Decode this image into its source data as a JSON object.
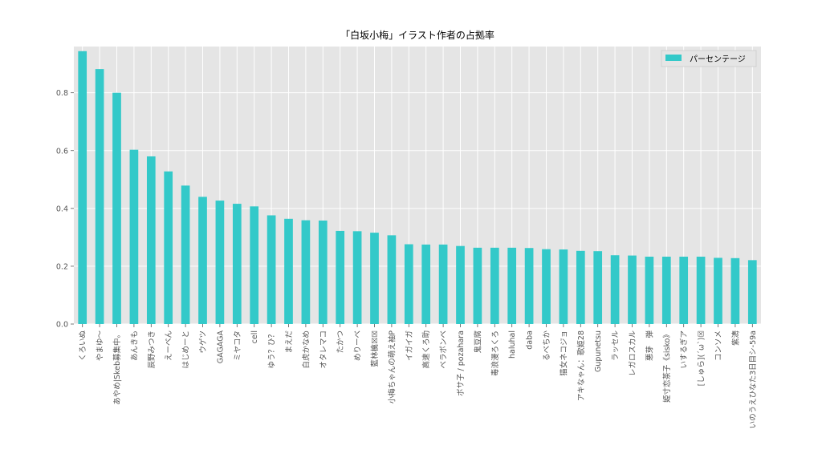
{
  "chart_data": {
    "type": "bar",
    "title": "「白坂小梅」イラスト作者の占拠率",
    "xlabel": "",
    "ylabel": "",
    "ylim": [
      0,
      0.96
    ],
    "yticks": [
      "0.0",
      "0.2",
      "0.4",
      "0.6",
      "0.8"
    ],
    "grid": true,
    "legend_position": "top-right",
    "bar_color": "#33c9c9",
    "background_color": "#e5e5e5",
    "series": [
      {
        "name": "パーセンテージ",
        "values": [
          0.944,
          0.882,
          0.8,
          0.603,
          0.58,
          0.528,
          0.479,
          0.44,
          0.427,
          0.416,
          0.407,
          0.376,
          0.364,
          0.359,
          0.358,
          0.322,
          0.321,
          0.316,
          0.307,
          0.276,
          0.275,
          0.275,
          0.27,
          0.264,
          0.264,
          0.264,
          0.263,
          0.259,
          0.258,
          0.253,
          0.252,
          0.238,
          0.237,
          0.233,
          0.233,
          0.233,
          0.233,
          0.229,
          0.228,
          0.221
        ]
      }
    ],
    "categories": [
      "くろいぬ",
      "やまゆ〜",
      "あやめ|Skeb募集中。",
      "あんきも",
      "辰野みつき",
      "えーべん",
      "はじめーと",
      "ウゲツ",
      "GAGAGA",
      "ミヤコタ",
      "cell",
      "ゆう？ひ？",
      "まえだ",
      "白虎かなめ",
      "オタレマコ",
      "たかつ",
      "めりーべ",
      "藍林檎☒☒",
      "小梅ちゃんの萌え袖P",
      "イガイガ",
      "高速くろ助",
      "ベラボンベ",
      "ボサ子 / pozahara",
      "鬼豆腐",
      "毒浪漫ろくろ",
      "haluhal",
      "daba",
      "るべちか",
      "猫女ネコジョ",
      "アキなゃん：歌姫28",
      "Gupunetsu",
      "ラッセル",
      "レガロスカル",
      "悪芽　弾",
      "姫寸恋茶子《sisko》",
      "いするぎア",
      "[しゅら](´ω`)☒",
      "コンソメ",
      "紫濤",
      "いのうえひなた3日目シ-59a"
    ]
  }
}
